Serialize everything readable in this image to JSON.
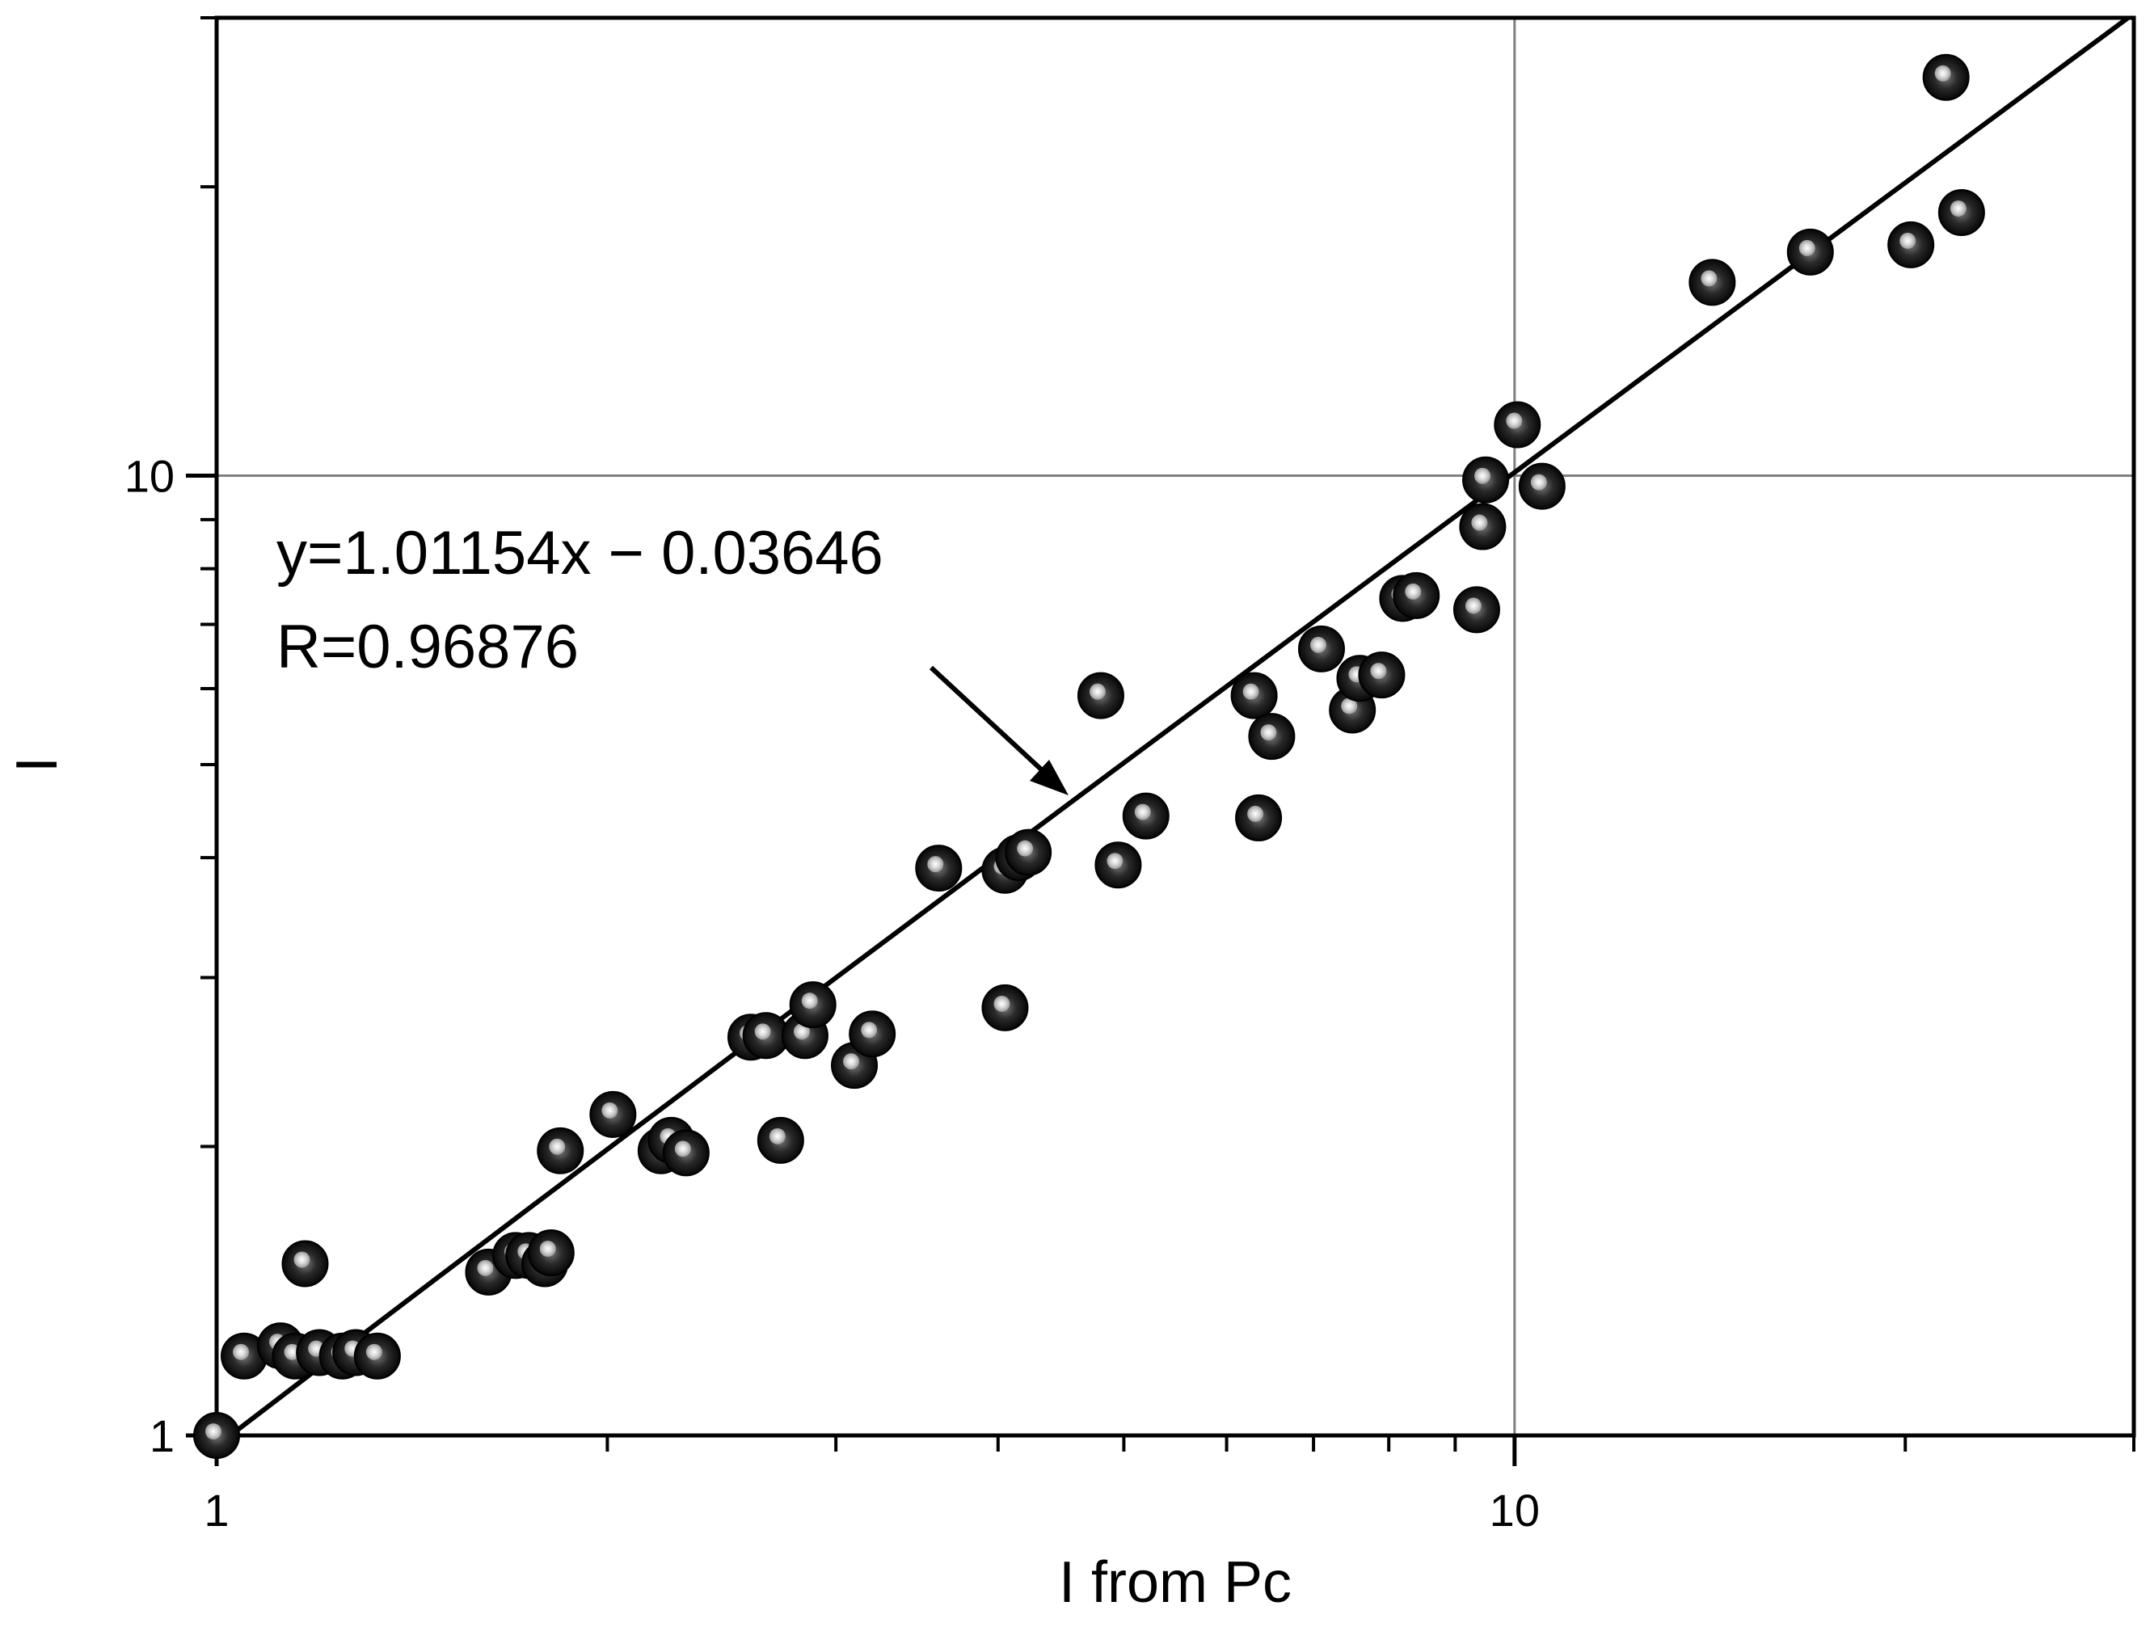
{
  "chart_data": {
    "type": "scatter",
    "xlabel": "I from Pc",
    "ylabel": "I",
    "xscale": "log",
    "yscale": "log",
    "xlim": [
      1,
      30
    ],
    "ylim": [
      1,
      30
    ],
    "x_ticks": [
      1,
      10
    ],
    "y_ticks": [
      1,
      10
    ],
    "grid": "major lines at 10",
    "colors": {
      "marker": "#111111",
      "line": "#000000",
      "grid": "#808080"
    },
    "annotations": [
      "y=1.01154x − 0.03646",
      "R=0.96876"
    ],
    "fit_line": {
      "slope": 1.01154,
      "intercept": -0.03646
    },
    "points": [
      {
        "x": 1.0,
        "y": 1.0
      },
      {
        "x": 1.05,
        "y": 1.21
      },
      {
        "x": 1.12,
        "y": 1.24
      },
      {
        "x": 1.15,
        "y": 1.21
      },
      {
        "x": 1.17,
        "y": 1.51
      },
      {
        "x": 1.2,
        "y": 1.22
      },
      {
        "x": 1.25,
        "y": 1.21
      },
      {
        "x": 1.28,
        "y": 1.22
      },
      {
        "x": 1.33,
        "y": 1.21
      },
      {
        "x": 1.62,
        "y": 1.48
      },
      {
        "x": 1.7,
        "y": 1.54
      },
      {
        "x": 1.74,
        "y": 1.54
      },
      {
        "x": 1.79,
        "y": 1.51
      },
      {
        "x": 1.81,
        "y": 1.55
      },
      {
        "x": 1.84,
        "y": 1.98
      },
      {
        "x": 2.02,
        "y": 2.16
      },
      {
        "x": 2.2,
        "y": 1.98
      },
      {
        "x": 2.24,
        "y": 2.03
      },
      {
        "x": 2.3,
        "y": 1.97
      },
      {
        "x": 2.58,
        "y": 2.6
      },
      {
        "x": 2.65,
        "y": 2.61
      },
      {
        "x": 2.72,
        "y": 2.03
      },
      {
        "x": 2.84,
        "y": 2.61
      },
      {
        "x": 2.88,
        "y": 2.81
      },
      {
        "x": 3.1,
        "y": 2.43
      },
      {
        "x": 3.2,
        "y": 2.62
      },
      {
        "x": 3.6,
        "y": 3.9
      },
      {
        "x": 4.05,
        "y": 2.79
      },
      {
        "x": 4.05,
        "y": 3.88
      },
      {
        "x": 4.15,
        "y": 4.0
      },
      {
        "x": 4.22,
        "y": 4.05
      },
      {
        "x": 4.8,
        "y": 5.9
      },
      {
        "x": 4.95,
        "y": 3.93
      },
      {
        "x": 5.2,
        "y": 4.42
      },
      {
        "x": 6.3,
        "y": 5.9
      },
      {
        "x": 6.35,
        "y": 4.4
      },
      {
        "x": 6.5,
        "y": 5.35
      },
      {
        "x": 7.1,
        "y": 6.6
      },
      {
        "x": 7.5,
        "y": 5.7
      },
      {
        "x": 7.6,
        "y": 6.15
      },
      {
        "x": 7.9,
        "y": 6.2
      },
      {
        "x": 8.2,
        "y": 7.45
      },
      {
        "x": 8.4,
        "y": 7.5
      },
      {
        "x": 9.35,
        "y": 7.25
      },
      {
        "x": 9.45,
        "y": 8.85
      },
      {
        "x": 9.5,
        "y": 9.9
      },
      {
        "x": 10.05,
        "y": 11.3
      },
      {
        "x": 10.5,
        "y": 9.75
      },
      {
        "x": 14.2,
        "y": 15.9
      },
      {
        "x": 16.9,
        "y": 17.1
      },
      {
        "x": 20.2,
        "y": 17.4
      },
      {
        "x": 21.5,
        "y": 26.0
      },
      {
        "x": 22.1,
        "y": 18.8
      }
    ]
  }
}
